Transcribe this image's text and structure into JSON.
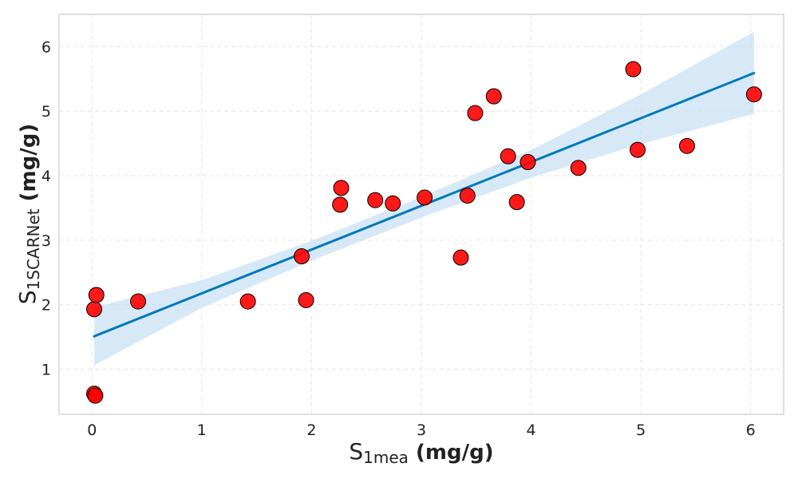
{
  "chart_data": {
    "type": "scatter",
    "xlabel": {
      "main": "S",
      "sub": "1mea",
      "unit": " (mg/g)"
    },
    "ylabel": {
      "main": "S",
      "sub": "1SCARNet",
      "unit": " (mg/g)"
    },
    "xlim": [
      -0.3,
      6.3
    ],
    "ylim": [
      0.3,
      6.5
    ],
    "xticks": [
      0,
      1,
      2,
      3,
      4,
      5,
      6
    ],
    "yticks": [
      1,
      2,
      3,
      4,
      5,
      6
    ],
    "grid": true,
    "series": [
      {
        "kind": "scatter",
        "color": "#ff0000",
        "edge_color": "#000000",
        "points": [
          {
            "x": 0.02,
            "y": 1.93
          },
          {
            "x": 0.04,
            "y": 2.15
          },
          {
            "x": 0.02,
            "y": 0.62
          },
          {
            "x": 0.03,
            "y": 0.59
          },
          {
            "x": 0.42,
            "y": 2.05
          },
          {
            "x": 1.42,
            "y": 2.05
          },
          {
            "x": 1.91,
            "y": 2.75
          },
          {
            "x": 1.95,
            "y": 2.07
          },
          {
            "x": 2.26,
            "y": 3.55
          },
          {
            "x": 2.27,
            "y": 3.81
          },
          {
            "x": 2.58,
            "y": 3.62
          },
          {
            "x": 2.74,
            "y": 3.57
          },
          {
            "x": 3.03,
            "y": 3.66
          },
          {
            "x": 3.36,
            "y": 2.73
          },
          {
            "x": 3.42,
            "y": 3.69
          },
          {
            "x": 3.49,
            "y": 4.97
          },
          {
            "x": 3.66,
            "y": 5.23
          },
          {
            "x": 3.79,
            "y": 4.3
          },
          {
            "x": 3.87,
            "y": 3.59
          },
          {
            "x": 3.97,
            "y": 4.21
          },
          {
            "x": 4.43,
            "y": 4.12
          },
          {
            "x": 4.93,
            "y": 5.65
          },
          {
            "x": 4.97,
            "y": 4.4
          },
          {
            "x": 5.42,
            "y": 4.46
          },
          {
            "x": 6.03,
            "y": 5.26
          }
        ]
      },
      {
        "kind": "regression_line",
        "color": "#0077bb",
        "x": [
          0.02,
          6.03
        ],
        "y": [
          1.51,
          5.59
        ]
      },
      {
        "kind": "confidence_band",
        "color": "#c6e0f2",
        "x": [
          0.02,
          1.0,
          2.0,
          3.0,
          4.0,
          5.0,
          6.03
        ],
        "lower": [
          1.06,
          1.95,
          2.68,
          3.35,
          3.97,
          4.49,
          4.96
        ],
        "upper": [
          1.96,
          2.38,
          2.99,
          3.67,
          4.4,
          5.26,
          6.23
        ]
      }
    ]
  }
}
